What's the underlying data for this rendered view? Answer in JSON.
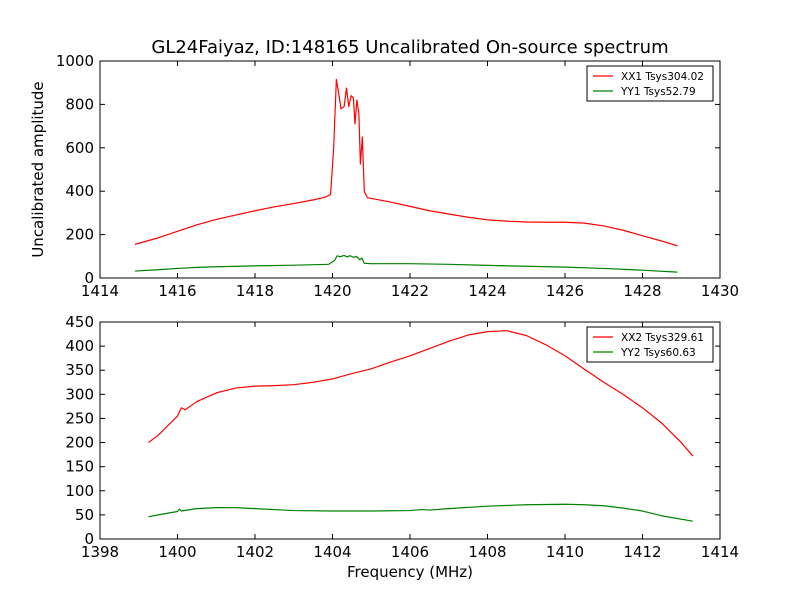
{
  "figure_title": "GL24Faiyaz, ID:148165 Uncalibrated On-source spectrum",
  "shared_xlabel": "Frequency (MHz)",
  "chart_data": [
    {
      "type": "line",
      "title": "GL24Faiyaz, ID:148165 Uncalibrated On-source spectrum",
      "xlabel": "",
      "ylabel": "Uncalibrated amplitude",
      "xlim": [
        1414,
        1430
      ],
      "ylim": [
        0,
        1000
      ],
      "xticks": [
        1414,
        1416,
        1418,
        1420,
        1422,
        1424,
        1426,
        1428,
        1430
      ],
      "yticks": [
        0,
        200,
        400,
        600,
        800,
        1000
      ],
      "legend_position": "top-right",
      "series": [
        {
          "name": "XX1 Tsys304.02",
          "color": "#ff0000",
          "points": [
            [
              1414.9,
              155
            ],
            [
              1415.5,
              185
            ],
            [
              1416,
              215
            ],
            [
              1416.5,
              245
            ],
            [
              1417,
              270
            ],
            [
              1417.5,
              290
            ],
            [
              1418,
              310
            ],
            [
              1418.5,
              328
            ],
            [
              1419,
              343
            ],
            [
              1419.5,
              360
            ],
            [
              1419.8,
              372
            ],
            [
              1419.95,
              385
            ],
            [
              1420.03,
              600
            ],
            [
              1420.1,
              915
            ],
            [
              1420.16,
              850
            ],
            [
              1420.22,
              780
            ],
            [
              1420.3,
              790
            ],
            [
              1420.36,
              875
            ],
            [
              1420.42,
              790
            ],
            [
              1420.48,
              840
            ],
            [
              1420.54,
              830
            ],
            [
              1420.58,
              710
            ],
            [
              1420.63,
              820
            ],
            [
              1420.68,
              760
            ],
            [
              1420.72,
              525
            ],
            [
              1420.77,
              650
            ],
            [
              1420.82,
              400
            ],
            [
              1420.9,
              370
            ],
            [
              1421.5,
              350
            ],
            [
              1422,
              330
            ],
            [
              1422.5,
              310
            ],
            [
              1423,
              295
            ],
            [
              1423.5,
              280
            ],
            [
              1424,
              268
            ],
            [
              1424.5,
              262
            ],
            [
              1425,
              258
            ],
            [
              1425.5,
              257
            ],
            [
              1426,
              257
            ],
            [
              1426.5,
              253
            ],
            [
              1427,
              240
            ],
            [
              1427.5,
              220
            ],
            [
              1428,
              195
            ],
            [
              1428.5,
              170
            ],
            [
              1428.9,
              148
            ]
          ]
        },
        {
          "name": "YY1 Tsys52.79",
          "color": "#008000",
          "points": [
            [
              1414.9,
              32
            ],
            [
              1415.5,
              38
            ],
            [
              1416,
              44
            ],
            [
              1416.5,
              49
            ],
            [
              1417,
              52
            ],
            [
              1418,
              56
            ],
            [
              1419,
              59
            ],
            [
              1419.9,
              63
            ],
            [
              1420.05,
              80
            ],
            [
              1420.12,
              102
            ],
            [
              1420.2,
              98
            ],
            [
              1420.3,
              104
            ],
            [
              1420.38,
              97
            ],
            [
              1420.45,
              103
            ],
            [
              1420.55,
              95
            ],
            [
              1420.62,
              100
            ],
            [
              1420.7,
              84
            ],
            [
              1420.76,
              92
            ],
            [
              1420.82,
              68
            ],
            [
              1421,
              66
            ],
            [
              1422,
              66
            ],
            [
              1423,
              63
            ],
            [
              1424,
              58
            ],
            [
              1425,
              54
            ],
            [
              1426,
              50
            ],
            [
              1427,
              44
            ],
            [
              1428,
              36
            ],
            [
              1428.9,
              27
            ]
          ]
        }
      ]
    },
    {
      "type": "line",
      "title": "",
      "xlabel": "Frequency (MHz)",
      "ylabel": "",
      "xlim": [
        1398,
        1414
      ],
      "ylim": [
        0,
        450
      ],
      "xticks": [
        1398,
        1400,
        1402,
        1404,
        1406,
        1408,
        1410,
        1412,
        1414
      ],
      "yticks": [
        0,
        50,
        100,
        150,
        200,
        250,
        300,
        350,
        400,
        450
      ],
      "legend_position": "top-right",
      "series": [
        {
          "name": "XX2 Tsys329.61",
          "color": "#ff0000",
          "points": [
            [
              1399.25,
              200
            ],
            [
              1399.5,
              215
            ],
            [
              1400,
              255
            ],
            [
              1400.1,
              272
            ],
            [
              1400.2,
              268
            ],
            [
              1400.5,
              285
            ],
            [
              1401,
              303
            ],
            [
              1401.5,
              313
            ],
            [
              1402,
              317
            ],
            [
              1402.5,
              318
            ],
            [
              1403,
              320
            ],
            [
              1403.5,
              325
            ],
            [
              1404,
              332
            ],
            [
              1404.5,
              343
            ],
            [
              1405,
              353
            ],
            [
              1405.5,
              367
            ],
            [
              1406,
              380
            ],
            [
              1406.5,
              395
            ],
            [
              1407,
              410
            ],
            [
              1407.5,
              423
            ],
            [
              1408,
              430
            ],
            [
              1408.5,
              432
            ],
            [
              1409,
              422
            ],
            [
              1409.5,
              403
            ],
            [
              1410,
              380
            ],
            [
              1410.5,
              352
            ],
            [
              1411,
              325
            ],
            [
              1411.5,
              300
            ],
            [
              1412,
              272
            ],
            [
              1412.5,
              240
            ],
            [
              1413,
              200
            ],
            [
              1413.3,
              172
            ]
          ]
        },
        {
          "name": "YY2 Tsys60.63",
          "color": "#008000",
          "points": [
            [
              1399.25,
              46
            ],
            [
              1399.5,
              50
            ],
            [
              1400,
              57
            ],
            [
              1400.05,
              62
            ],
            [
              1400.1,
              58
            ],
            [
              1400.5,
              63
            ],
            [
              1401,
              65
            ],
            [
              1401.5,
              65
            ],
            [
              1402,
              63
            ],
            [
              1403,
              59
            ],
            [
              1404,
              58
            ],
            [
              1405,
              58
            ],
            [
              1406,
              59
            ],
            [
              1406.3,
              61
            ],
            [
              1406.5,
              60
            ],
            [
              1407,
              63
            ],
            [
              1408,
              68
            ],
            [
              1409,
              71
            ],
            [
              1410,
              72
            ],
            [
              1410.5,
              71
            ],
            [
              1411,
              69
            ],
            [
              1411.5,
              64
            ],
            [
              1412,
              58
            ],
            [
              1412.5,
              48
            ],
            [
              1413.3,
              37
            ]
          ]
        }
      ]
    }
  ]
}
